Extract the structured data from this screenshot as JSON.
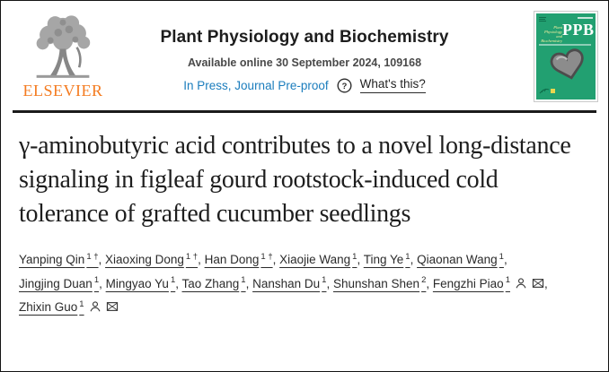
{
  "colors": {
    "link_blue": "#1b7dbd",
    "elsevier_orange": "#f47b20",
    "cover_green": "#22a071",
    "divider_dark": "#1b1b1b"
  },
  "icons": {
    "logo": "elsevier-tree-icon",
    "help": "question-circle-icon",
    "corresponding_author": "person-icon",
    "email": "envelope-icon"
  },
  "header": {
    "elsevier_wordmark": "ELSEVIER",
    "journal_title": "Plant Physiology and Biochemistry",
    "availability": "Available online 30 September 2024, 109168",
    "status_link": "In Press, Journal Pre-proof",
    "help_link": "What's this?",
    "cover": {
      "abbrev": "PPB",
      "script_lines": [
        "Plant",
        "Physiology",
        "and",
        "Biochemistry"
      ]
    }
  },
  "article": {
    "title": "γ-aminobutyric acid contributes to a novel long-distance signaling in figleaf gourd rootstock-induced cold tolerance of grafted cucumber seedlings",
    "authors": [
      {
        "name": "Yanping Qin",
        "sup": "1 †",
        "corresponding": false
      },
      {
        "name": "Xiaoxing Dong",
        "sup": "1 †",
        "corresponding": false
      },
      {
        "name": "Han Dong",
        "sup": "1 †",
        "corresponding": false
      },
      {
        "name": "Xiaojie Wang",
        "sup": "1",
        "corresponding": false
      },
      {
        "name": "Ting Ye",
        "sup": "1",
        "corresponding": false
      },
      {
        "name": "Qiaonan Wang",
        "sup": "1",
        "corresponding": false
      },
      {
        "name": "Jingjing Duan",
        "sup": "1",
        "corresponding": false
      },
      {
        "name": "Mingyao Yu",
        "sup": "1",
        "corresponding": false
      },
      {
        "name": "Tao Zhang",
        "sup": "1",
        "corresponding": false
      },
      {
        "name": "Nanshan Du",
        "sup": "1",
        "corresponding": false
      },
      {
        "name": "Shunshan Shen",
        "sup": "2",
        "corresponding": false
      },
      {
        "name": "Fengzhi Piao",
        "sup": "1",
        "corresponding": true
      },
      {
        "name": "Zhixin Guo",
        "sup": "1",
        "corresponding": true
      }
    ]
  }
}
